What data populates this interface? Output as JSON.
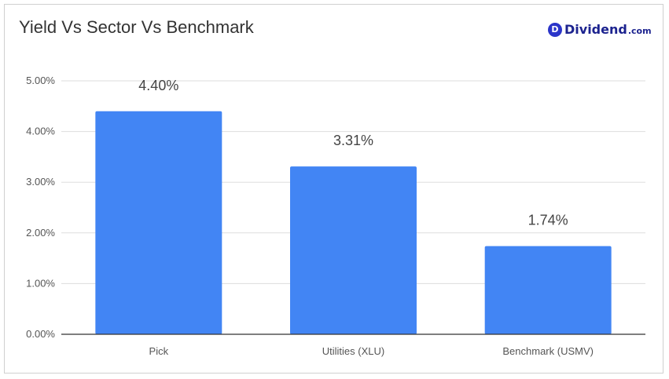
{
  "chart_data": {
    "type": "bar",
    "title": "Yield Vs Sector Vs Benchmark",
    "categories": [
      "Pick",
      "Utilities (XLU)",
      "Benchmark (USMV)"
    ],
    "values": [
      4.4,
      3.31,
      1.74
    ],
    "data_labels": [
      "4.40%",
      "3.31%",
      "1.74%"
    ],
    "ylim": [
      0,
      5
    ],
    "yticks": [
      0,
      1,
      2,
      3,
      4,
      5
    ],
    "ytick_labels": [
      "0.00%",
      "1.00%",
      "2.00%",
      "3.00%",
      "4.00%",
      "5.00%"
    ],
    "xlabel": "",
    "ylabel": "",
    "grid": true,
    "legend": "none",
    "bar_color": "#4285f4"
  },
  "brand": {
    "mark": "D",
    "name": "Dividend",
    "tld": ".com",
    "color": "#1c238f"
  }
}
